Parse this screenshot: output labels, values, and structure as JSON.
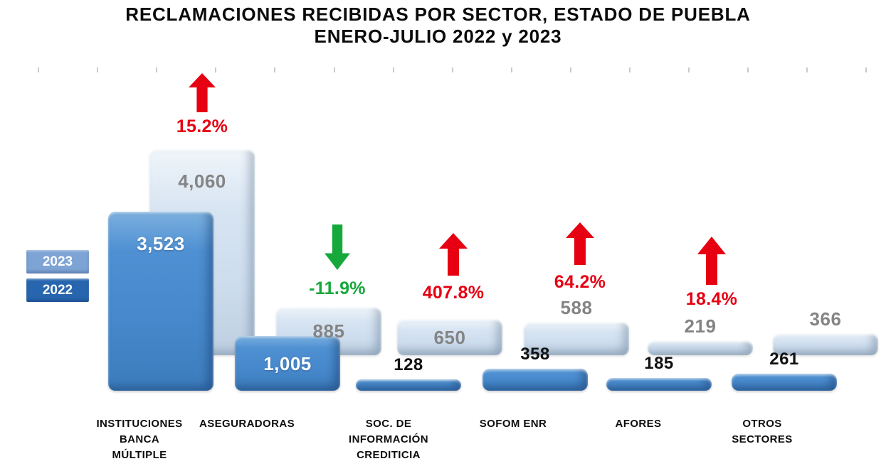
{
  "chart_data": {
    "type": "bar",
    "title": "RECLAMACIONES RECIBIDAS POR SECTOR, ESTADO DE PUEBLA",
    "subtitle": "ENERO-JULIO 2022 y 2023",
    "categories": [
      "INSTITUCIONES BANCA MÚLTIPLE",
      "ASEGURADORAS",
      "SOC. DE INFORMACIÓN CREDITICIA",
      "SOFOM ENR",
      "AFORES",
      "OTROS SECTORES"
    ],
    "categories_display": [
      "INSTITUCIONES\nBANCA\nMÚLTIPLE",
      "ASEGURADORAS",
      "SOC. DE\nINFORMACIÓN\nCREDITICIA",
      "SOFOM ENR",
      "AFORES",
      "OTROS\nSECTORES"
    ],
    "series": [
      {
        "name": "2022",
        "values": [
          3523,
          1005,
          128,
          358,
          185,
          261
        ],
        "labels": [
          "3,523",
          "1,005",
          "128",
          "358",
          "185",
          "261"
        ]
      },
      {
        "name": "2023",
        "values": [
          4060,
          885,
          650,
          588,
          219,
          366
        ],
        "labels": [
          "4,060",
          "885",
          "650",
          "588",
          "219",
          "366"
        ]
      }
    ],
    "changes": [
      {
        "label": "15.2%",
        "direction": "up"
      },
      {
        "label": "-11.9%",
        "direction": "down"
      },
      {
        "label": "407.8%",
        "direction": "up"
      },
      {
        "label": "64.2%",
        "direction": "up"
      },
      {
        "label": "18.4%",
        "direction": "up"
      },
      null
    ],
    "legend": {
      "items": [
        "2023",
        "2022"
      ],
      "position": "middle-left"
    },
    "colors": {
      "bar_2022": "#4689cc",
      "bar_2023": "#cfdfef",
      "legend_2023": "#7ea4d6",
      "legend_2022": "#2766ae",
      "increase": "#e60012",
      "decrease": "#17a83b",
      "value_gray": "#848484",
      "value_white": "#ffffff",
      "value_black": "#111111"
    },
    "ylim": [
      0,
      4500
    ],
    "grid": false
  }
}
